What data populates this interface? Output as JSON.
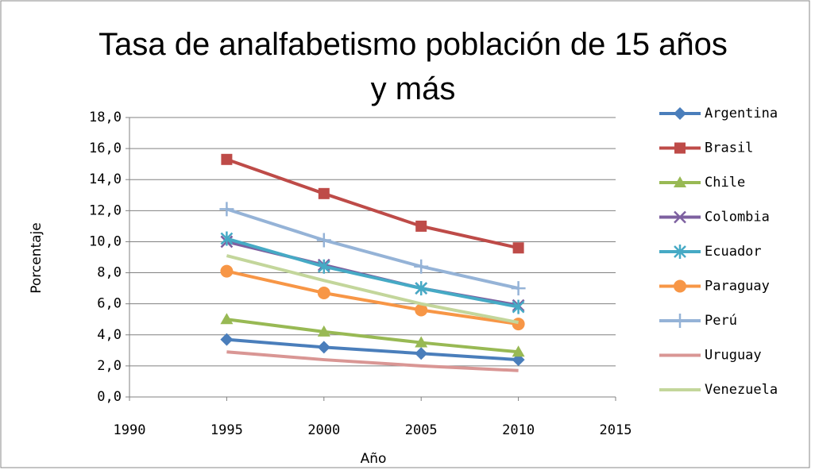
{
  "chart_data": {
    "type": "line",
    "title": "Tasa de analfabetismo población de 15 años y más",
    "x_label": "Año",
    "y_label": "Porcentaje",
    "x": [
      1995,
      2000,
      2005,
      2010
    ],
    "xlim": [
      1990,
      2015
    ],
    "xticks": [
      1990,
      1995,
      2000,
      2005,
      2010,
      2015
    ],
    "ylim": [
      0,
      18
    ],
    "yticks": [
      {
        "value": 0,
        "label": "0,0"
      },
      {
        "value": 2,
        "label": "2,0"
      },
      {
        "value": 4,
        "label": "4,0"
      },
      {
        "value": 6,
        "label": "6,0"
      },
      {
        "value": 8,
        "label": "8,0"
      },
      {
        "value": 10,
        "label": "10,0"
      },
      {
        "value": 12,
        "label": "12,0"
      },
      {
        "value": 14,
        "label": "14,0"
      },
      {
        "value": 16,
        "label": "16,0"
      },
      {
        "value": 18,
        "label": "18,0"
      }
    ],
    "grid": true,
    "legend": "right",
    "series": [
      {
        "name": "Argentina",
        "color": "#4a7ebb",
        "marker": "diamond",
        "values": [
          3.7,
          3.2,
          2.8,
          2.4
        ]
      },
      {
        "name": "Brasil",
        "color": "#be4b48",
        "marker": "square",
        "values": [
          15.3,
          13.1,
          11.0,
          9.6
        ]
      },
      {
        "name": "Chile",
        "color": "#98b954",
        "marker": "triangle",
        "values": [
          5.0,
          4.2,
          3.5,
          2.9
        ]
      },
      {
        "name": "Colombia",
        "color": "#7d60a0",
        "marker": "x",
        "values": [
          10.0,
          8.5,
          7.0,
          5.9
        ]
      },
      {
        "name": "Ecuador",
        "color": "#46aac5",
        "marker": "star",
        "values": [
          10.2,
          8.4,
          7.0,
          5.8
        ]
      },
      {
        "name": "Paraguay",
        "color": "#f79646",
        "marker": "circle",
        "values": [
          8.1,
          6.7,
          5.6,
          4.7
        ]
      },
      {
        "name": "Perú",
        "color": "#95b3d7",
        "marker": "plus",
        "values": [
          12.1,
          10.1,
          8.4,
          7.0
        ]
      },
      {
        "name": "Uruguay",
        "color": "#d99694",
        "marker": "none",
        "values": [
          2.9,
          2.4,
          2.0,
          1.7
        ]
      },
      {
        "name": "Venezuela",
        "color": "#c3d69b",
        "marker": "none",
        "values": [
          9.1,
          7.5,
          6.0,
          4.8
        ]
      }
    ]
  }
}
